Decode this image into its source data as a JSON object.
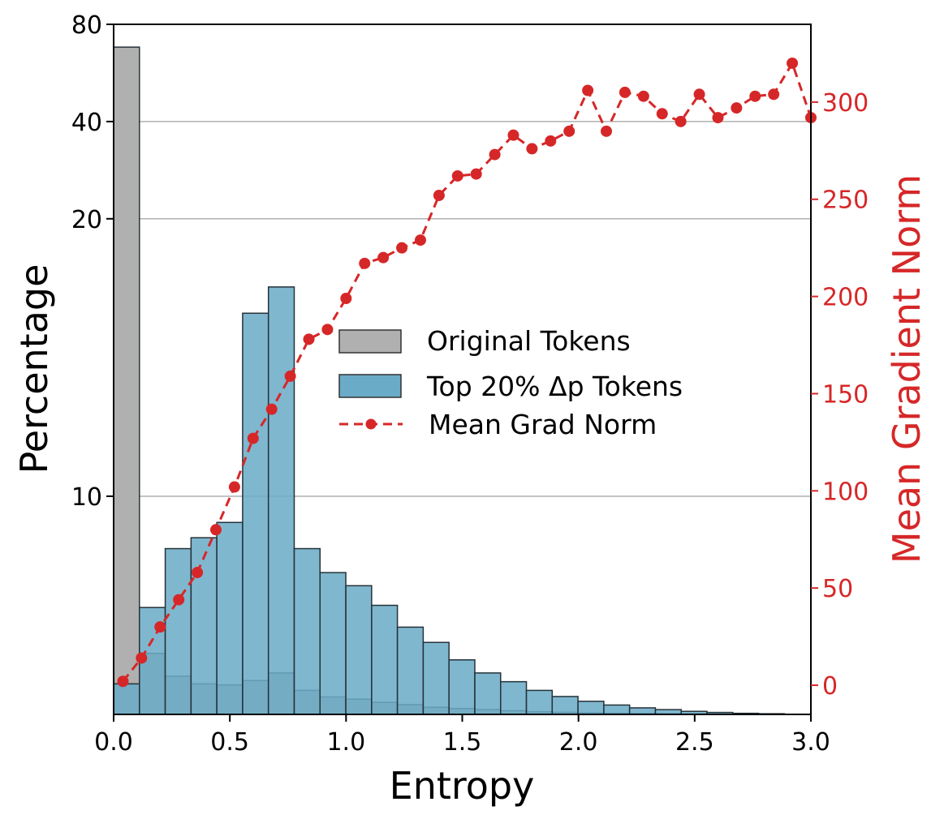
{
  "chart_data": {
    "type": "bar",
    "xlabel": "Entropy",
    "ylabel": "Percentage",
    "y2label": "Mean Gradient Norm",
    "xlim": [
      0.0,
      3.0
    ],
    "x_ticks": [
      "0.0",
      "0.5",
      "1.0",
      "1.5",
      "2.0",
      "2.5",
      "3.0"
    ],
    "y_ticks": [
      "10",
      "20",
      "40",
      "80"
    ],
    "y2_ticks": [
      "0",
      "50",
      "100",
      "150",
      "200",
      "250",
      "300"
    ],
    "y2lim": [
      -15,
      340
    ],
    "grid": "horizontal",
    "legend_placement": "center",
    "bin_width": 0.111,
    "bin_left_edges": [
      0.0,
      0.111,
      0.222,
      0.333,
      0.444,
      0.555,
      0.666,
      0.777,
      0.888,
      0.999,
      1.11,
      1.221,
      1.332,
      1.443,
      1.554,
      1.665,
      1.776,
      1.887,
      1.998,
      2.109,
      2.22,
      2.331,
      2.442,
      2.553,
      2.664,
      2.775,
      2.886
    ],
    "series": [
      {
        "name": "Original Tokens",
        "kind": "bar",
        "color": "#b0b0b0",
        "values": [
          68,
          2.8,
          1.75,
          1.4,
          1.35,
          1.55,
          1.9,
          1.1,
          0.8,
          0.7,
          0.55,
          0.45,
          0.33,
          0.27,
          0.22,
          0.17,
          0.12,
          0.095,
          0.07,
          0.055,
          0.04,
          0.03,
          0.02,
          0.015,
          0.01,
          0.008,
          0.005
        ]
      },
      {
        "name": "Top 20% Δp Tokens",
        "kind": "bar",
        "color": "#6aabc7",
        "values": [
          1.4,
          4.9,
          7.6,
          8.1,
          8.8,
          10.2,
          12.3,
          7.6,
          6.5,
          5.9,
          5.0,
          4.0,
          3.3,
          2.5,
          1.9,
          1.5,
          1.1,
          0.82,
          0.6,
          0.43,
          0.3,
          0.22,
          0.14,
          0.09,
          0.05,
          0.03,
          0.01
        ]
      },
      {
        "name": "Mean Grad Norm",
        "kind": "line",
        "axis": "right",
        "color": "#d62728",
        "x": [
          0.04,
          0.12,
          0.2,
          0.28,
          0.36,
          0.44,
          0.52,
          0.6,
          0.68,
          0.76,
          0.84,
          0.92,
          1.0,
          1.08,
          1.16,
          1.24,
          1.32,
          1.4,
          1.48,
          1.56,
          1.64,
          1.72,
          1.8,
          1.88,
          1.96,
          2.04,
          2.12,
          2.2,
          2.28,
          2.36,
          2.44,
          2.52,
          2.6,
          2.68,
          2.76,
          2.84,
          2.92,
          3.0
        ],
        "values": [
          2,
          14,
          30,
          44,
          58,
          80,
          102,
          127,
          142,
          159,
          178,
          183,
          199,
          217,
          220,
          225,
          229,
          252,
          262,
          263,
          273,
          283,
          276,
          280,
          285,
          306,
          285,
          305,
          303,
          294,
          290,
          304,
          292,
          297,
          303,
          304,
          320,
          292
        ]
      }
    ]
  }
}
